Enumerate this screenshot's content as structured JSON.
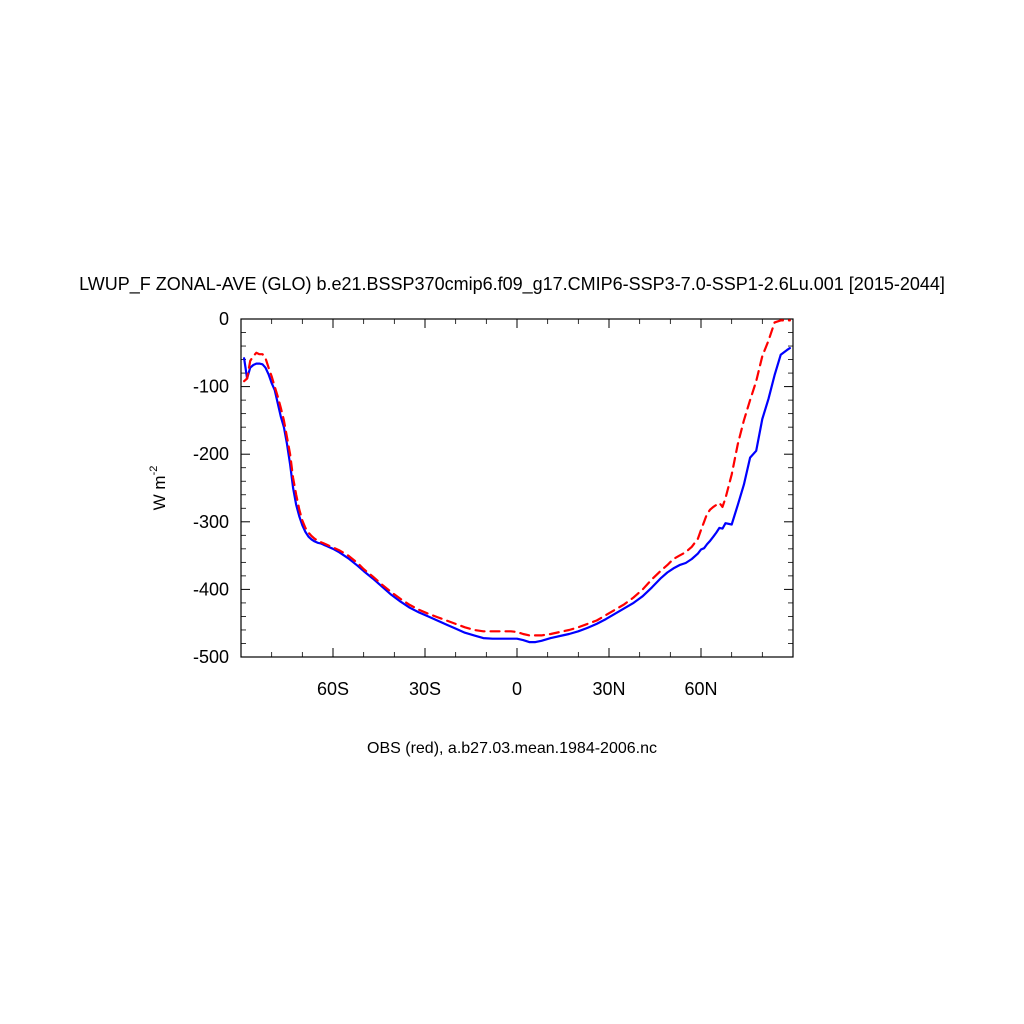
{
  "chart_data": {
    "type": "line",
    "title": "LWUP_F ZONAL-AVE (GLO) b.e21.BSSP370cmip6.f09_g17.CMIP6-SSP3-7.0-SSP1-2.6Lu.001 [2015-2044]",
    "ylabel": "W m",
    "ylabel_superscript": "-2",
    "caption": "OBS (red), a.b27.03.mean.1984-2006.nc",
    "xlim": [
      -90,
      90
    ],
    "ylim": [
      -500,
      0
    ],
    "xticks": [
      {
        "value": -60,
        "label": "60S"
      },
      {
        "value": -30,
        "label": "30S"
      },
      {
        "value": 0,
        "label": "0"
      },
      {
        "value": 30,
        "label": "30N"
      },
      {
        "value": 60,
        "label": "60N"
      }
    ],
    "yticks": [
      {
        "value": 0,
        "label": "0"
      },
      {
        "value": -100,
        "label": "-100"
      },
      {
        "value": -200,
        "label": "-200"
      },
      {
        "value": -300,
        "label": "-300"
      },
      {
        "value": -400,
        "label": "-400"
      },
      {
        "value": -500,
        "label": "-500"
      }
    ],
    "series": [
      {
        "color": "#0000ff",
        "dash": "solid",
        "x": [
          -89,
          -88,
          -87,
          -86,
          -85,
          -84,
          -83,
          -82,
          -81,
          -80,
          -79,
          -78,
          -77,
          -76,
          -75,
          -74,
          -73,
          -72,
          -71,
          -70,
          -69,
          -68,
          -67,
          -66,
          -65,
          -64,
          -63,
          -62,
          -61,
          -60,
          -58,
          -55,
          -52,
          -50,
          -47,
          -44,
          -41,
          -38,
          -35,
          -32,
          -29,
          -26,
          -23,
          -20,
          -17,
          -14,
          -11,
          -8,
          -5,
          -2,
          0,
          2,
          4,
          6,
          8,
          11,
          14,
          17,
          20,
          23,
          26,
          29,
          32,
          35,
          38,
          41,
          44,
          47,
          49,
          51,
          53,
          55,
          57,
          59,
          60,
          61,
          62,
          63,
          64,
          65,
          66,
          67,
          68,
          70,
          72,
          74,
          76,
          78,
          80,
          82,
          84,
          86,
          88,
          89
        ],
        "y": [
          -58,
          -88,
          -72,
          -68,
          -66,
          -66,
          -67,
          -72,
          -82,
          -95,
          -105,
          -125,
          -145,
          -160,
          -185,
          -215,
          -250,
          -275,
          -292,
          -305,
          -315,
          -322,
          -326,
          -329,
          -331,
          -332,
          -334,
          -336,
          -338,
          -340,
          -345,
          -354,
          -365,
          -373,
          -384,
          -396,
          -408,
          -418,
          -427,
          -434,
          -440,
          -446,
          -452,
          -458,
          -464,
          -468,
          -472,
          -473,
          -473,
          -473,
          -473,
          -475,
          -478,
          -478,
          -476,
          -472,
          -469,
          -466,
          -462,
          -457,
          -451,
          -444,
          -436,
          -428,
          -420,
          -410,
          -397,
          -383,
          -375,
          -369,
          -364,
          -361,
          -355,
          -347,
          -341,
          -339,
          -333,
          -328,
          -322,
          -316,
          -309,
          -310,
          -302,
          -304,
          -275,
          -245,
          -205,
          -195,
          -148,
          -118,
          -83,
          -53,
          -46,
          -43
        ]
      },
      {
        "color": "#ff0000",
        "dash": "dashed",
        "x": [
          -89,
          -88,
          -87,
          -86,
          -85,
          -84,
          -83,
          -82,
          -81,
          -80,
          -79,
          -78,
          -77,
          -76,
          -75,
          -74,
          -73,
          -72,
          -71,
          -70,
          -69,
          -68,
          -67,
          -66,
          -65,
          -64,
          -63,
          -62,
          -61,
          -60,
          -58,
          -55,
          -52,
          -50,
          -47,
          -44,
          -41,
          -38,
          -35,
          -32,
          -29,
          -26,
          -23,
          -20,
          -17,
          -14,
          -11,
          -8,
          -5,
          -2,
          0,
          2,
          4,
          6,
          8,
          11,
          14,
          17,
          20,
          23,
          26,
          29,
          32,
          35,
          38,
          41,
          44,
          47,
          49,
          51,
          53,
          55,
          57,
          59,
          60,
          61,
          62,
          63,
          64,
          65,
          66,
          67,
          68,
          70,
          72,
          74,
          76,
          78,
          80,
          82,
          84,
          86,
          88,
          89
        ],
        "y": [
          -92,
          -88,
          -62,
          -55,
          -50,
          -52,
          -52,
          -58,
          -72,
          -85,
          -100,
          -115,
          -132,
          -150,
          -175,
          -200,
          -235,
          -260,
          -282,
          -298,
          -309,
          -316,
          -321,
          -325,
          -328,
          -330,
          -332,
          -334,
          -336,
          -338,
          -342,
          -350,
          -361,
          -370,
          -381,
          -393,
          -404,
          -414,
          -423,
          -430,
          -436,
          -441,
          -446,
          -451,
          -456,
          -460,
          -462,
          -462,
          -462,
          -462,
          -463,
          -466,
          -468,
          -468,
          -468,
          -466,
          -463,
          -460,
          -456,
          -451,
          -446,
          -438,
          -430,
          -422,
          -412,
          -400,
          -385,
          -372,
          -364,
          -355,
          -350,
          -345,
          -337,
          -325,
          -312,
          -300,
          -288,
          -282,
          -278,
          -275,
          -272,
          -278,
          -265,
          -230,
          -185,
          -150,
          -120,
          -92,
          -55,
          -32,
          -5,
          -2,
          -2,
          -2
        ]
      }
    ]
  }
}
